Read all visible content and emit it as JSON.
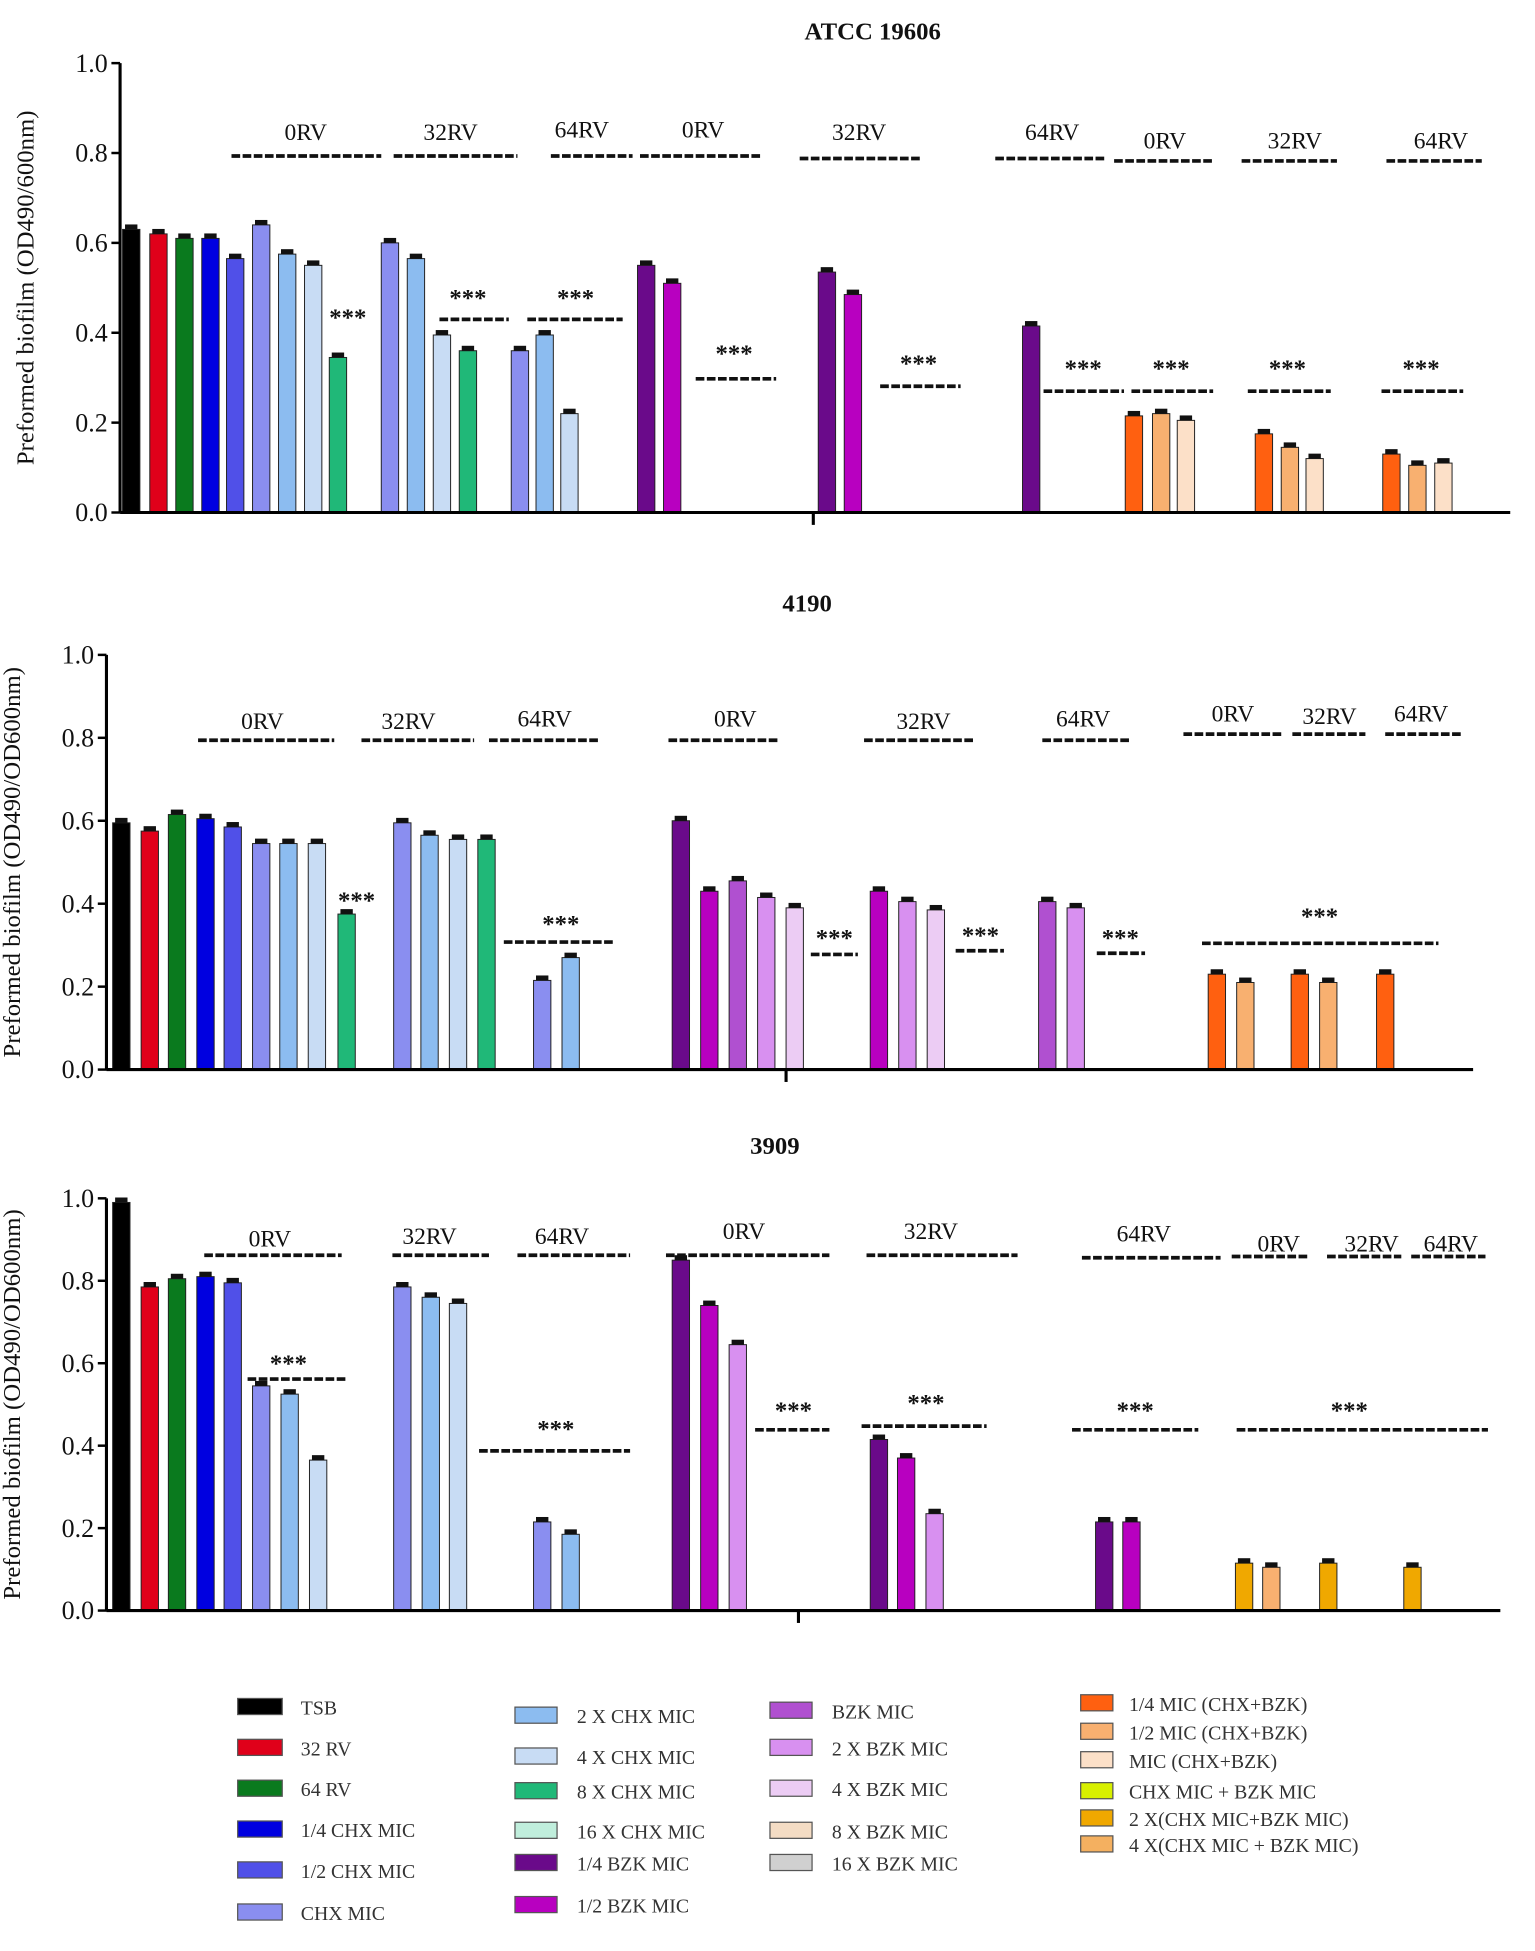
{
  "series": [
    {
      "name": "TSB",
      "color": "#000000"
    },
    {
      "name": "32 RV",
      "color": "#e0001a"
    },
    {
      "name": "64 RV",
      "color": "#0a7a1e"
    },
    {
      "name": "1/4 CHX MIC",
      "color": "#0000e0"
    },
    {
      "name": "1/2 CHX MIC",
      "color": "#5050e8"
    },
    {
      "name": "CHX MIC",
      "color": "#8a8ef0"
    },
    {
      "name": "2 X CHX MIC",
      "color": "#8cbcf0"
    },
    {
      "name": "4 X CHX MIC",
      "color": "#c8dcf4"
    },
    {
      "name": "8 X CHX MIC",
      "color": "#20b878"
    },
    {
      "name": "16 X CHX MIC",
      "color": "#c0eedc"
    },
    {
      "name": "1/4 BZK MIC",
      "color": "#6a0a8a"
    },
    {
      "name": "1/2 BZK MIC",
      "color": "#b800c0"
    },
    {
      "name": "BZK MIC",
      "color": "#b050d0"
    },
    {
      "name": "2 X BZK MIC",
      "color": "#d890f0"
    },
    {
      "name": "4 X BZK MIC",
      "color": "#ecccf4"
    },
    {
      "name": "8 X BZK MIC",
      "color": "#f4dcc4"
    },
    {
      "name": "16 X BZK MIC",
      "color": "#d0d0d0"
    },
    {
      "name": "1/4 MIC (CHX+BZK)",
      "color": "#ff6010"
    },
    {
      "name": "1/2 MIC (CHX+BZK)",
      "color": "#f8b070"
    },
    {
      "name": "MIC (CHX+BZK)",
      "color": "#fce0c8"
    },
    {
      "name": "CHX MIC + BZK MIC",
      "color": "#d8f000"
    },
    {
      "name": "2 X(CHX MIC+BZK MIC)",
      "color": "#f0a800"
    },
    {
      "name": "4 X(CHX MIC + BZK MIC)",
      "color": "#f4b060"
    }
  ],
  "chart_data": [
    {
      "type": "bar",
      "title": "ATCC 19606",
      "ylabel": "Preformed biofilm (OD490/600nm)",
      "ylim": [
        0,
        1.0
      ],
      "yticks": [
        "0.0",
        "0.2",
        "0.4",
        "0.6",
        "0.8",
        "1.0"
      ],
      "bars": [
        {
          "series": 0,
          "value": 0.63
        },
        {
          "series": 1,
          "value": 0.62
        },
        {
          "series": 2,
          "value": 0.61
        },
        {
          "series": 3,
          "value": 0.61
        },
        {
          "series": 4,
          "value": 0.565
        },
        {
          "series": 5,
          "value": 0.64
        },
        {
          "series": 6,
          "value": 0.575
        },
        {
          "series": 7,
          "value": 0.55
        },
        {
          "series": 8,
          "value": 0.345
        },
        {
          "series": 5,
          "value": 0.6
        },
        {
          "series": 6,
          "value": 0.565
        },
        {
          "series": 7,
          "value": 0.395
        },
        {
          "series": 8,
          "value": 0.36
        },
        {
          "series": 5,
          "value": 0.36
        },
        {
          "series": 6,
          "value": 0.395
        },
        {
          "series": 7,
          "value": 0.22
        },
        {
          "series": 10,
          "value": 0.55
        },
        {
          "series": 11,
          "value": 0.51
        },
        {
          "series": 10,
          "value": 0.535
        },
        {
          "series": 11,
          "value": 0.485
        },
        {
          "series": 10,
          "value": 0.415
        },
        {
          "series": 17,
          "value": 0.215
        },
        {
          "series": 18,
          "value": 0.22
        },
        {
          "series": 19,
          "value": 0.205
        },
        {
          "series": 17,
          "value": 0.175
        },
        {
          "series": 18,
          "value": 0.145
        },
        {
          "series": 19,
          "value": 0.12
        },
        {
          "series": 17,
          "value": 0.13
        },
        {
          "series": 18,
          "value": 0.105
        },
        {
          "series": 19,
          "value": 0.11
        }
      ],
      "group_labels": [
        "0RV",
        "32RV",
        "64RV",
        "0RV",
        "32RV",
        "64RV",
        "0RV",
        "32RV",
        "64RV"
      ],
      "significance": [
        "***",
        "***",
        "***",
        "***",
        "***",
        "***",
        "***",
        "***",
        "***"
      ]
    },
    {
      "type": "bar",
      "title": "4190",
      "ylabel": "Preformed biofilm (OD490/OD600nm)",
      "ylim": [
        0,
        1.0
      ],
      "yticks": [
        "0.0",
        "0.2",
        "0.4",
        "0.6",
        "0.8",
        "1.0"
      ],
      "bars": [
        {
          "series": 0,
          "value": 0.595
        },
        {
          "series": 1,
          "value": 0.575
        },
        {
          "series": 2,
          "value": 0.615
        },
        {
          "series": 3,
          "value": 0.605
        },
        {
          "series": 4,
          "value": 0.585
        },
        {
          "series": 5,
          "value": 0.545
        },
        {
          "series": 6,
          "value": 0.545
        },
        {
          "series": 7,
          "value": 0.545
        },
        {
          "series": 8,
          "value": 0.375
        },
        {
          "series": 5,
          "value": 0.595
        },
        {
          "series": 6,
          "value": 0.565
        },
        {
          "series": 7,
          "value": 0.555
        },
        {
          "series": 8,
          "value": 0.555
        },
        {
          "series": 5,
          "value": 0.215
        },
        {
          "series": 6,
          "value": 0.27
        },
        {
          "series": 10,
          "value": 0.6
        },
        {
          "series": 11,
          "value": 0.43
        },
        {
          "series": 12,
          "value": 0.455
        },
        {
          "series": 13,
          "value": 0.415
        },
        {
          "series": 14,
          "value": 0.39
        },
        {
          "series": 11,
          "value": 0.43
        },
        {
          "series": 13,
          "value": 0.405
        },
        {
          "series": 14,
          "value": 0.385
        },
        {
          "series": 12,
          "value": 0.405
        },
        {
          "series": 13,
          "value": 0.39
        },
        {
          "series": 17,
          "value": 0.23
        },
        {
          "series": 18,
          "value": 0.21
        },
        {
          "series": 17,
          "value": 0.23
        },
        {
          "series": 18,
          "value": 0.21
        },
        {
          "series": 17,
          "value": 0.23
        }
      ],
      "group_labels": [
        "0RV",
        "32RV",
        "64RV",
        "0RV",
        "32RV",
        "64RV",
        "0RV",
        "32RV",
        "64RV"
      ],
      "significance": [
        "***",
        "***",
        "***",
        "***",
        "***",
        "***"
      ]
    },
    {
      "type": "bar",
      "title": "3909",
      "ylabel": "Preformed biofilm (OD490/OD600nm)",
      "ylim": [
        0,
        1.0
      ],
      "yticks": [
        "0.0",
        "0.2",
        "0.4",
        "0.6",
        "0.8",
        "1.0"
      ],
      "bars": [
        {
          "series": 0,
          "value": 0.99
        },
        {
          "series": 1,
          "value": 0.785
        },
        {
          "series": 2,
          "value": 0.805
        },
        {
          "series": 3,
          "value": 0.81
        },
        {
          "series": 4,
          "value": 0.795
        },
        {
          "series": 5,
          "value": 0.545
        },
        {
          "series": 6,
          "value": 0.525
        },
        {
          "series": 7,
          "value": 0.365
        },
        {
          "series": 5,
          "value": 0.785
        },
        {
          "series": 6,
          "value": 0.76
        },
        {
          "series": 7,
          "value": 0.745
        },
        {
          "series": 5,
          "value": 0.215
        },
        {
          "series": 6,
          "value": 0.185
        },
        {
          "series": 10,
          "value": 0.85
        },
        {
          "series": 11,
          "value": 0.74
        },
        {
          "series": 13,
          "value": 0.645
        },
        {
          "series": 10,
          "value": 0.415
        },
        {
          "series": 11,
          "value": 0.37
        },
        {
          "series": 13,
          "value": 0.235
        },
        {
          "series": 10,
          "value": 0.215
        },
        {
          "series": 11,
          "value": 0.215
        },
        {
          "series": 21,
          "value": 0.115
        },
        {
          "series": 18,
          "value": 0.105
        },
        {
          "series": 21,
          "value": 0.115
        },
        {
          "series": 21,
          "value": 0.105
        }
      ],
      "group_labels": [
        "0RV",
        "32RV",
        "64RV",
        "0RV",
        "32RV",
        "64RV",
        "0RV",
        "32RV",
        "64RV"
      ],
      "significance": [
        "***",
        "***",
        "***",
        "***",
        "***",
        "***"
      ]
    }
  ]
}
